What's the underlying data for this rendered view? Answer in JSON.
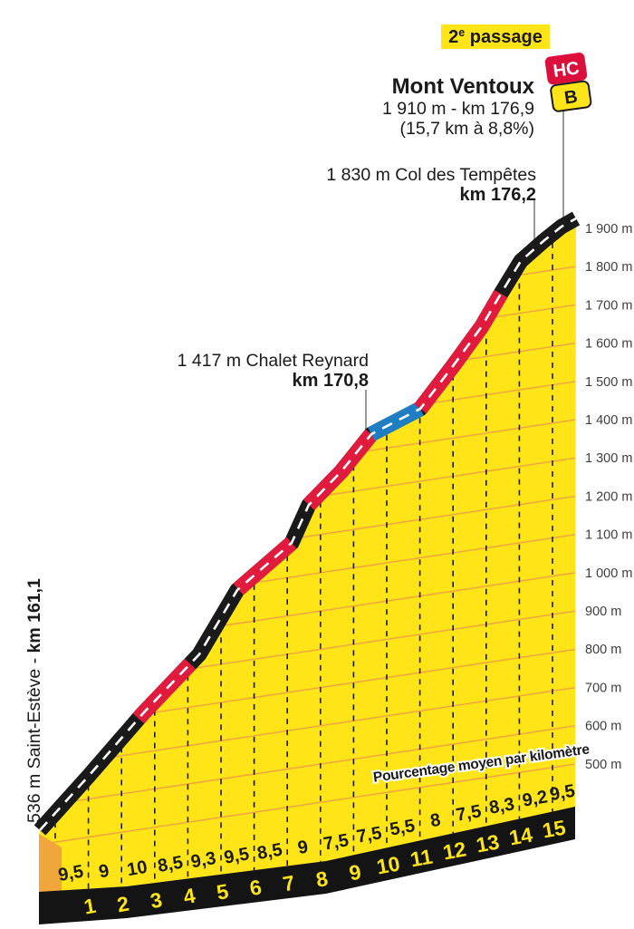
{
  "chart_data": {
    "type": "area",
    "title": "Mont Ventoux",
    "passage_badge": {
      "number": "2",
      "sup": "e",
      "word": " passage"
    },
    "summit": {
      "name": "Mont Ventoux",
      "elevation_line": "1 910 m - km 176,9",
      "stats_line": "(15,7 km à 8,8%)",
      "category": "HC",
      "bonus": "B"
    },
    "start_label": {
      "prefix": "536 m Saint-Estève - ",
      "bold": "km 161,1"
    },
    "waypoints": [
      {
        "id": "col-des-tempetes",
        "line1": "1 830 m Col des Tempêtes",
        "line2": "km 176,2"
      },
      {
        "id": "chalet-reynard",
        "line1": "1 417 m Chalet Reynard",
        "line2": "km 170,8"
      }
    ],
    "footer_note": "Pourcentage moyen par kilomètre",
    "km_ticks": [
      "1",
      "2",
      "3",
      "4",
      "5",
      "6",
      "7",
      "8",
      "9",
      "10",
      "11",
      "12",
      "13",
      "14",
      "15"
    ],
    "gradient_labels": [
      "9,5",
      "9",
      "10",
      "8,5",
      "9,3",
      "9,5",
      "8,5",
      "9",
      "7,5",
      "7,5",
      "5,5",
      "8",
      "7,5",
      "8,3",
      "9,2",
      "9,5"
    ],
    "gradients_pct": [
      9.5,
      9,
      10,
      8.5,
      9.3,
      9.5,
      8.5,
      9,
      7.5,
      7.5,
      5.5,
      8,
      7.5,
      8.3,
      9.2,
      9.5
    ],
    "total_km": 15.7,
    "avg_gradient_pct": 8.8,
    "start_elevation_m": 536,
    "summit_elevation_m": 1910,
    "elevation_ticks": [
      "1 900 m",
      "1 800 m",
      "1 700 m",
      "1 600 m",
      "1 500 m",
      "1 400 m",
      "1 300 m",
      "1 200 m",
      "1 100 m",
      "1 000 m",
      "900 m",
      "800 m",
      "700 m",
      "600 m",
      "500 m"
    ],
    "road_segments": [
      {
        "type": "steep",
        "color": "#E01B3D",
        "x_range": [
          153,
          210
        ]
      },
      {
        "type": "steep",
        "color": "#E01B3D",
        "x_range": [
          263,
          322
        ]
      },
      {
        "type": "steep",
        "color": "#E01B3D",
        "x_range": [
          341,
          410
        ]
      },
      {
        "type": "moderate",
        "color": "#1F7EC2",
        "x_range": [
          410,
          464
        ]
      },
      {
        "type": "steep",
        "color": "#E01B3D",
        "x_range": [
          464,
          553
        ]
      }
    ],
    "colors": {
      "mountain_yellow": "#FFE517",
      "side_face_orange": "#F1A63C",
      "gridline_orange": "#F2A140",
      "road_black": "#1A1A1A",
      "base_black": "#141414",
      "steep_red": "#E01B3D",
      "moderate_blue": "#1F7EC2",
      "badge_yellow": "#FFE517",
      "hc_red": "#DC0F3C",
      "text_dark": "#1A1A1A",
      "axis_text": "#3D3D3D",
      "pole_gray": "#999999",
      "centerline_white": "#FFFFFF"
    }
  }
}
